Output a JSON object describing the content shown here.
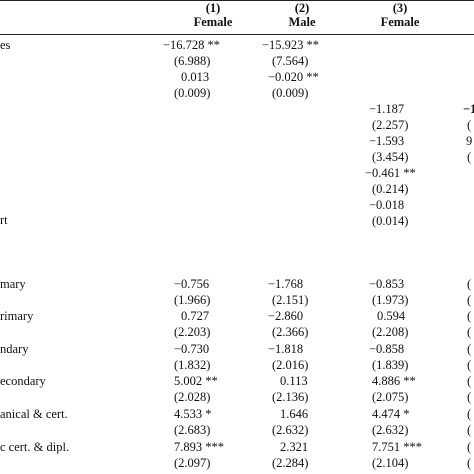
{
  "header": {
    "columns": [
      {
        "number": "(1)",
        "label": "Female"
      },
      {
        "number": "(2)",
        "label": "Male"
      },
      {
        "number": "(3)",
        "label": "Female"
      }
    ],
    "row_label_header": "es"
  },
  "labels": {
    "rt": "rt",
    "mary": "mary",
    "rimary": "rimary",
    "ndary": "ndary",
    "econdary": "econdary",
    "nical": "anical & cert.",
    "dipl": "c cert. & dipl."
  },
  "col1": [
    "−16.728 **",
    "(6.988)",
    "0.013",
    "(0.009)",
    "−0.756",
    "(1.966)",
    "0.727",
    "(2.203)",
    "−0.730",
    "(1.832)",
    "5.002 **",
    "(2.028)",
    "4.533 *",
    "(2.683)",
    "7.893 ***",
    "(2.097)"
  ],
  "col2": [
    "−15.923 **",
    "(7.564)",
    "−0.020 **",
    "(0.009)",
    "−1.768",
    "(2.151)",
    "−2.860",
    "(2.366)",
    "−1.818",
    "(2.016)",
    "0.113",
    "(2.136)",
    "1.646",
    "(2.632)",
    "2.321",
    "(2.284)"
  ],
  "col3": [
    "−1.187",
    "(2.257)",
    "−1.593",
    "(3.454)",
    "−0.461 **",
    "(0.214)",
    "−0.018",
    "(0.014)",
    "−0.853",
    "(1.973)",
    "0.594",
    "(2.208)",
    "−0.858",
    "(1.839)",
    "4.886 **",
    "(2.075)",
    "4.474 *",
    "(2.632)",
    "7.751 ***",
    "(2.104)"
  ],
  "col4_edge": [
    "−1",
    "(",
    "9",
    "(",
    "(",
    "(",
    "(",
    "(",
    "(",
    "(",
    "(",
    "(",
    "(",
    "(",
    "(",
    "("
  ]
}
